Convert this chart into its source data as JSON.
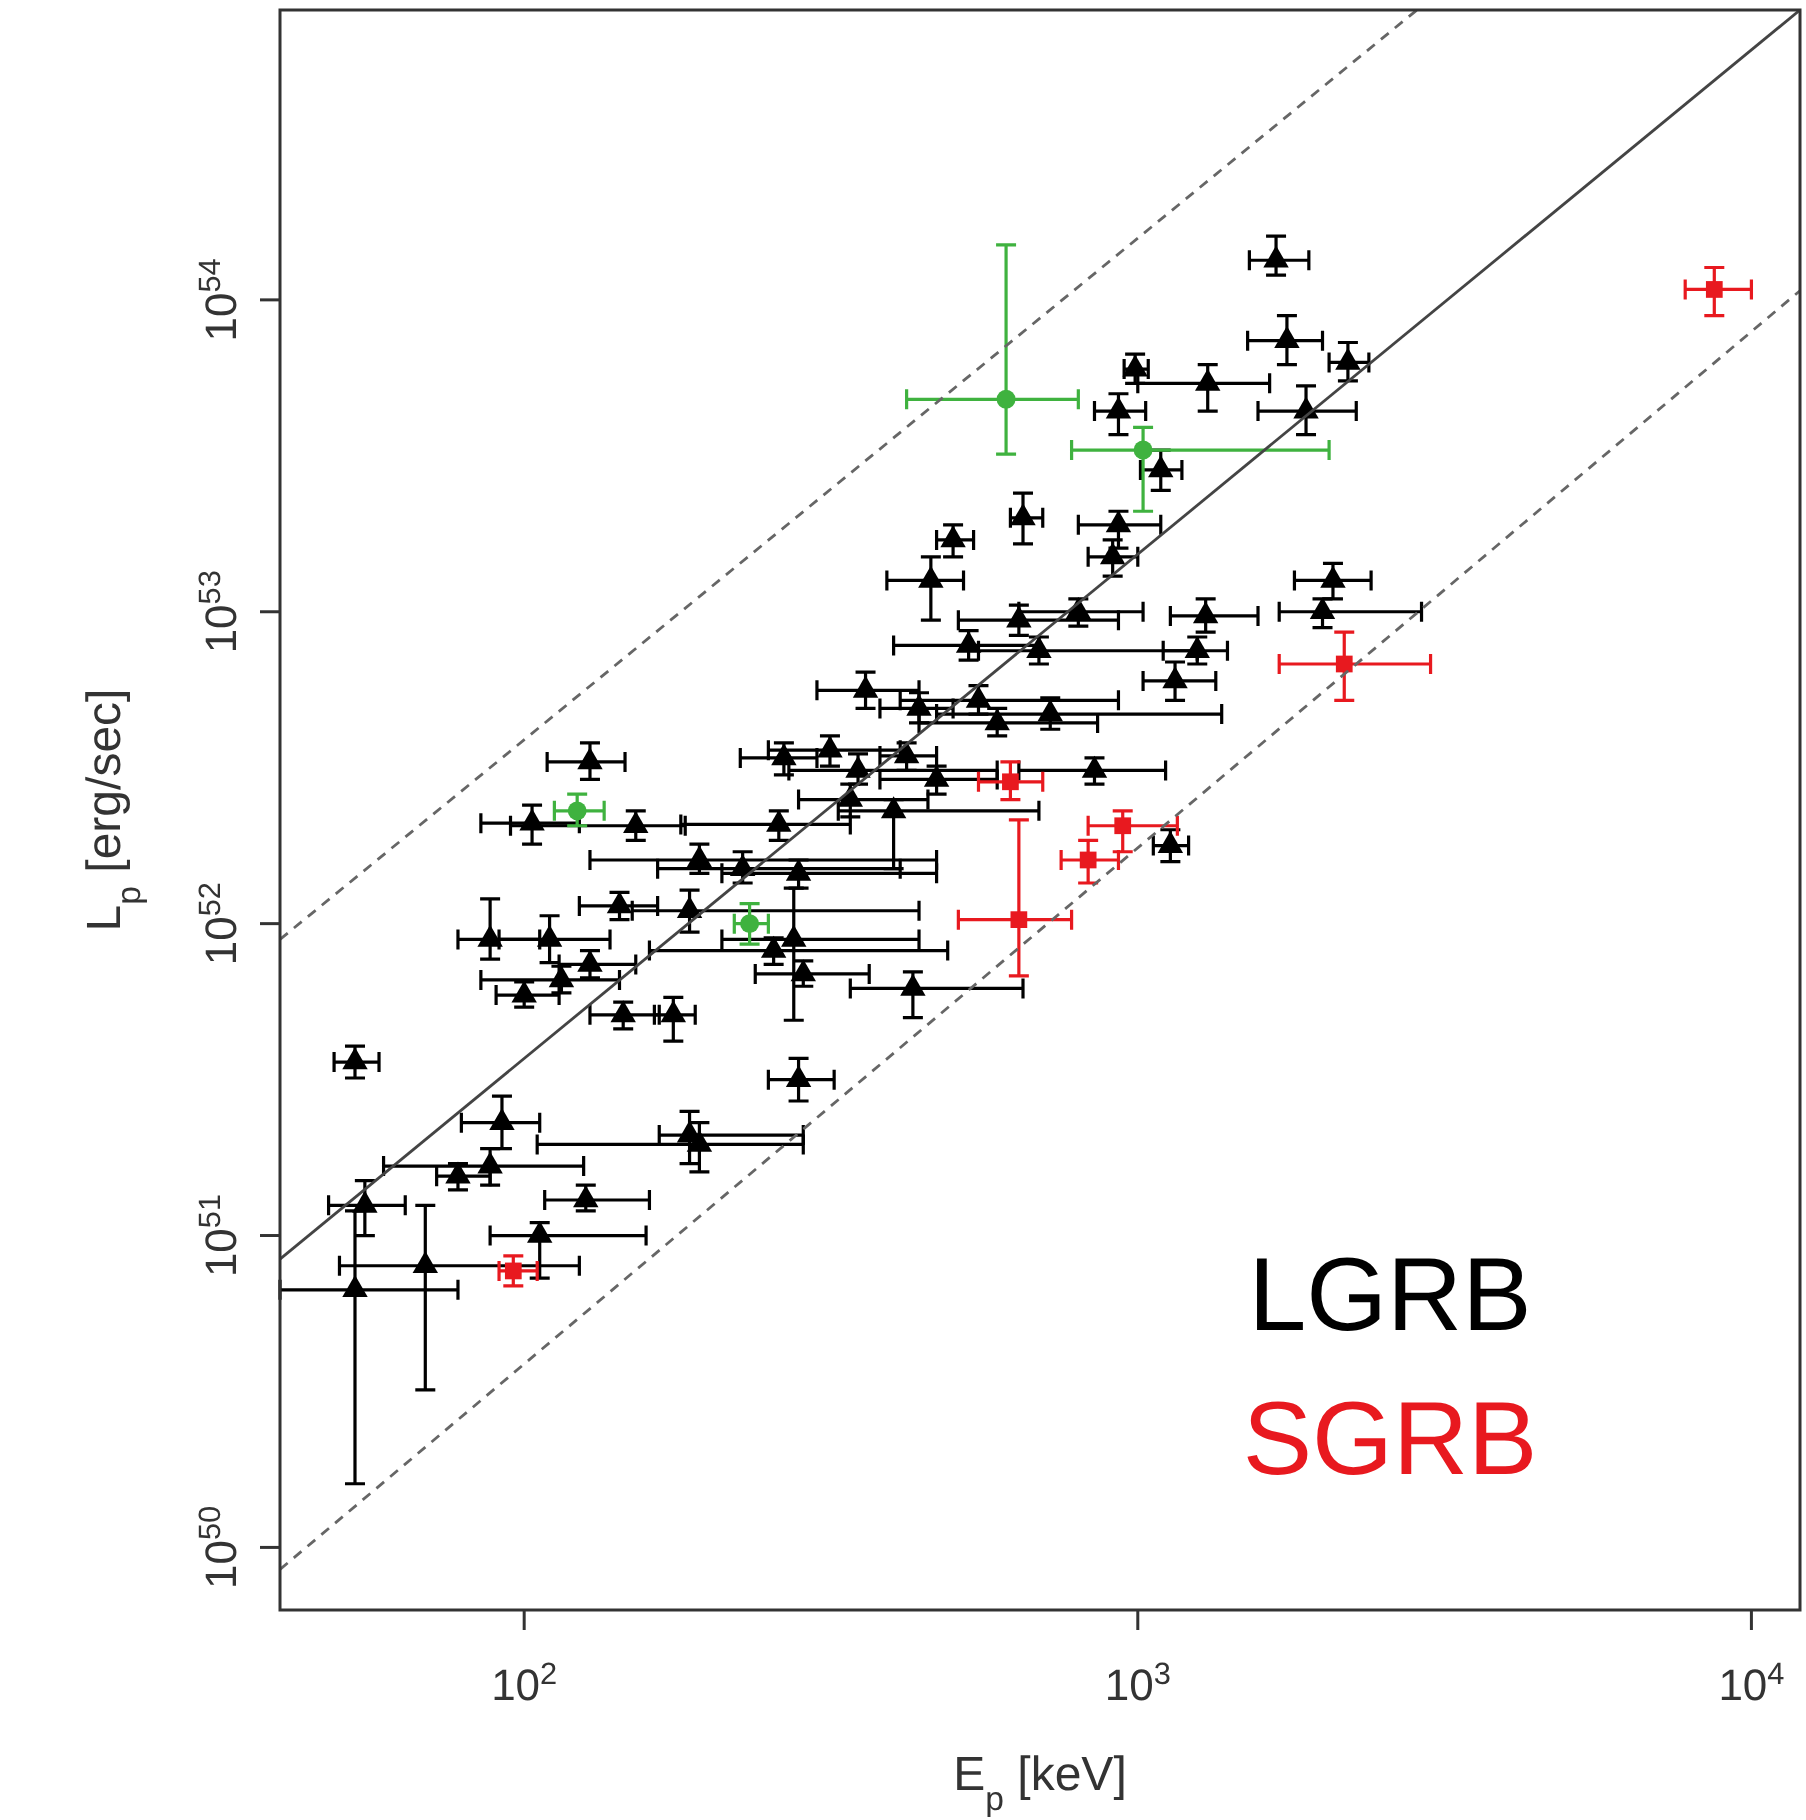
{
  "chart_data": {
    "type": "scatter",
    "xlabel": "E$_{p}$ [keV]",
    "ylabel": "L$_{p}$ [erg/sec]",
    "log": "xy",
    "xlim": [
      40,
      12000
    ],
    "ylim": [
      6.3e+49,
      8.5e+54
    ],
    "xticks": [
      {
        "value": 100,
        "label": "10$^{2}$"
      },
      {
        "value": 1000,
        "label": "10$^{3}$"
      },
      {
        "value": 10000,
        "label": "10$^{4}$"
      }
    ],
    "yticks": [
      {
        "value": 1e+50,
        "label": "10$^{50}$"
      },
      {
        "value": 1e+51,
        "label": "10$^{51}$"
      },
      {
        "value": 1e+52,
        "label": "10$^{52}$"
      },
      {
        "value": 1e+53,
        "label": "10$^{53}$"
      },
      {
        "value": 1e+54,
        "label": "10$^{54}$"
      }
    ],
    "legend": "bottom right",
    "series": [
      {
        "name": "LGRB",
        "color": "#000000",
        "marker": "triangle",
        "x": [
          1680,
          1750,
          2200,
          990,
          1300,
          930,
          1880,
          1090,
          650,
          500,
          930,
          910,
          460,
          2080,
          1290,
          2000,
          640,
          800,
          690,
          530,
          1250,
          1150,
          360,
          550,
          440,
          590,
          720,
          265,
          315,
          350,
          420,
          470,
          340,
          400,
          850,
          128,
          103,
          152,
          260,
          193,
          227,
          280,
          186,
          143,
          275,
          255,
          285,
          430,
          88,
          110,
          128,
          115,
          100,
          145,
          175,
          53,
          53,
          69,
          55,
          78,
          88,
          92,
          126,
          106,
          186,
          193,
          280,
          1130
        ],
        "values": [
          1.34e+54,
          7.4e+53,
          6.3e+53,
          6e+53,
          5.4e+53,
          4.4e+53,
          4.4e+53,
          2.85e+53,
          2e+53,
          1.7e+53,
          1.9e+53,
          1.5e+53,
          1.26e+53,
          1.26e+53,
          9.7e+52,
          1e+53,
          9.4e+52,
          1e+53,
          7.5e+52,
          7.8e+52,
          7.5e+52,
          6e+52,
          5.6e+52,
          5.2e+52,
          4.9e+52,
          4.4e+52,
          4.7e+52,
          3.4e+52,
          3.6e+52,
          3.1e+52,
          3.45e+52,
          2.9e+52,
          2.5e+52,
          2.3e+52,
          3.1e+52,
          3.3e+52,
          2.1e+52,
          2.06e+52,
          2.08e+52,
          1.6e+52,
          1.5e+52,
          1.45e+52,
          1.1e+52,
          1.14e+52,
          8.9e+51,
          8.2e+51,
          6.9e+51,
          6.2e+51,
          8.9e+51,
          8.9e+51,
          7.4e+51,
          6.6e+51,
          5.9e+51,
          5.1e+51,
          5.1e+51,
          3.6e+51,
          6.7e+50,
          8e+50,
          1.25e+51,
          1.55e+51,
          1.67e+51,
          2.3e+51,
          1.3e+51,
          1e+51,
          2.1e+51,
          1.96e+51,
          3.16e+51,
          1.78e+52
        ],
        "xerrors": [
          [
            1520,
            1900
          ],
          [
            1510,
            2000
          ],
          [
            2050,
            2380
          ],
          [
            950,
            1040
          ],
          [
            1000,
            1640
          ],
          [
            850,
            1030
          ],
          [
            1570,
            2270
          ],
          [
            1010,
            1180
          ],
          [
            620,
            700
          ],
          [
            470,
            540
          ],
          [
            800,
            1090
          ],
          [
            830,
            1000
          ],
          [
            390,
            520
          ],
          [
            1800,
            2400
          ],
          [
            1130,
            1570
          ],
          [
            1700,
            2900
          ],
          [
            510,
            930
          ],
          [
            640,
            1020
          ],
          [
            550,
            1250
          ],
          [
            400,
            690
          ],
          [
            1100,
            1400
          ],
          [
            1020,
            1340
          ],
          [
            300,
            440
          ],
          [
            410,
            930
          ],
          [
            380,
            500
          ],
          [
            440,
            860
          ],
          [
            470,
            1370
          ],
          [
            225,
            300
          ],
          [
            250,
            410
          ],
          [
            270,
            590
          ],
          [
            380,
            470
          ],
          [
            380,
            590
          ],
          [
            280,
            455
          ],
          [
            325,
            690
          ],
          [
            640,
            1110
          ],
          [
            109,
            146
          ],
          [
            85,
            123
          ],
          [
            95,
            183
          ],
          [
            180,
            340
          ],
          [
            128,
            470
          ],
          [
            165,
            410
          ],
          [
            210,
            470
          ],
          [
            150,
            440
          ],
          [
            123,
            165
          ],
          [
            210,
            440
          ],
          [
            160,
            490
          ],
          [
            238,
            365
          ],
          [
            340,
            650
          ],
          [
            78,
            106
          ],
          [
            91,
            138
          ],
          [
            114,
            152
          ],
          [
            85,
            143
          ],
          [
            90,
            114
          ],
          [
            128,
            166
          ],
          [
            163,
            190
          ],
          [
            49,
            58
          ],
          [
            40,
            78
          ],
          [
            50,
            123
          ],
          [
            48,
            64
          ],
          [
            72,
            88
          ],
          [
            59,
            125
          ],
          [
            79,
            106
          ],
          [
            108,
            160
          ],
          [
            88,
            158
          ],
          [
            166,
            285
          ],
          [
            105,
            285
          ],
          [
            250,
            320
          ],
          [
            1060,
            1210
          ]
        ],
        "errors": [
          [
            1.2e+54,
            1.6e+54
          ],
          [
            6.2e+53,
            8.9e+53
          ],
          [
            5.5e+53,
            7.3e+53
          ],
          [
            5.4e+53,
            6.7e+53
          ],
          [
            4.4e+53,
            6.2e+53
          ],
          [
            3.7e+53,
            5e+53
          ],
          [
            3.7e+53,
            5.3e+53
          ],
          [
            2.45e+53,
            3.3e+53
          ],
          [
            1.65e+53,
            2.4e+53
          ],
          [
            1.5e+53,
            1.9e+53
          ],
          [
            1.6e+53,
            2.1e+53
          ],
          [
            1.3e+53,
            1.7e+53
          ],
          [
            9.4e+52,
            1.5e+53
          ],
          [
            1.1e+53,
            1.43e+53
          ],
          [
            8.6e+52,
            1.1e+53
          ],
          [
            8.9e+52,
            1.1e+53
          ],
          [
            8.4e+52,
            1.05e+53
          ],
          [
            9e+52,
            1.1e+53
          ],
          [
            6.8e+52,
            8.3e+52
          ],
          [
            7e+52,
            8.7e+52
          ],
          [
            6.8e+52,
            8.3e+52
          ],
          [
            5.2e+52,
            6.9e+52
          ],
          [
            4.9e+52,
            6.4e+52
          ],
          [
            4.7e+52,
            5.8e+52
          ],
          [
            4.4e+52,
            5.5e+52
          ],
          [
            4e+52,
            4.9e+52
          ],
          [
            4.2e+52,
            5.3e+52
          ],
          [
            3e+52,
            3.8e+52
          ],
          [
            3.2e+52,
            4e+52
          ],
          [
            2.8e+52,
            3.5e+52
          ],
          [
            3.1e+52,
            3.8e+52
          ],
          [
            2.6e+52,
            3.2e+52
          ],
          [
            2.2e+52,
            2.8e+52
          ],
          [
            1.5e+52,
            2.5e+52
          ],
          [
            2.8e+52,
            3.4e+52
          ],
          [
            2.9e+52,
            3.8e+52
          ],
          [
            1.8e+52,
            2.4e+52
          ],
          [
            1.85e+52,
            2.3e+52
          ],
          [
            1.85e+52,
            2.3e+52
          ],
          [
            1.45e+52,
            1.8e+52
          ],
          [
            1.35e+52,
            1.7e+52
          ],
          [
            1.3e+52,
            1.6e+52
          ],
          [
            9.4e+51,
            1.28e+52
          ],
          [
            1.03e+52,
            1.26e+52
          ],
          [
            4.9e+51,
            1.3e+52
          ],
          [
            7.4e+51,
            9e+51
          ],
          [
            6.3e+51,
            7.6e+51
          ],
          [
            5e+51,
            7e+51
          ],
          [
            7.7e+51,
            1.2e+52
          ],
          [
            7.5e+51,
            1.06e+52
          ],
          [
            6.7e+51,
            8.2e+51
          ],
          [
            6e+51,
            7.3e+51
          ],
          [
            5.4e+51,
            6.5e+51
          ],
          [
            4.6e+51,
            5.6e+51
          ],
          [
            4.2e+51,
            5.8e+51
          ],
          [
            3.2e+51,
            4.05e+51
          ],
          [
            1.6e+50,
            1.2e+51
          ],
          [
            3.2e+50,
            1.25e+51
          ],
          [
            1e+51,
            1.5e+51
          ],
          [
            1.4e+51,
            1.7e+51
          ],
          [
            1.45e+51,
            1.9e+51
          ],
          [
            1.9e+51,
            2.8e+51
          ],
          [
            1.2e+51,
            1.45e+51
          ],
          [
            7.3e+50,
            1.1e+51
          ],
          [
            1.7e+51,
            2.5e+51
          ],
          [
            1.6e+51,
            2.3e+51
          ],
          [
            2.7e+51,
            3.7e+51
          ],
          [
            1.58e+52,
            2e+52
          ]
        ]
      },
      {
        "name": "SGRB",
        "color": "#e8191f",
        "marker": "square",
        "x": [
          8700,
          2170,
          620,
          945,
          830,
          640,
          96
        ],
        "values": [
          1.08e+54,
          6.8e+52,
          2.85e+52,
          2.06e+52,
          1.6e+52,
          1.03e+52,
          7.7e+50
        ],
        "xerrors": [
          [
            7800,
            10000
          ],
          [
            1700,
            3000
          ],
          [
            550,
            700
          ],
          [
            830,
            1160
          ],
          [
            750,
            930
          ],
          [
            510,
            780
          ],
          [
            91,
            105
          ]
        ],
        "errors": [
          [
            8.9e+53,
            1.27e+54
          ],
          [
            5.2e+52,
            8.6e+52
          ],
          [
            2.5e+52,
            3.3e+52
          ],
          [
            1.7e+52,
            2.3e+52
          ],
          [
            1.35e+52,
            1.85e+52
          ],
          [
            6.8e+51,
            2.15e+52
          ],
          [
            6.9e+50,
            8.6e+50
          ]
        ]
      },
      {
        "color": "#3fb23f",
        "marker": "circle",
        "x": [
          610,
          1020,
          122,
          233
        ],
        "values": [
          4.8e+53,
          3.3e+53,
          2.3e+52,
          1e+52
        ],
        "xerrors": [
          [
            420,
            800
          ],
          [
            780,
            2050
          ],
          [
            112,
            135
          ],
          [
            220,
            250
          ]
        ],
        "errors": [
          [
            3.2e+53,
            1.5e+54
          ],
          [
            2.1e+53,
            3.9e+53
          ],
          [
            2.06e+52,
            2.6e+52
          ],
          [
            8.6e+51,
            1.16e+52
          ]
        ]
      },
      {
        "type": "line",
        "color": "#444444",
        "line_style": "solid",
        "x": [
          40,
          12000
        ],
        "values": [
          8.4e+50,
          8.5e+54
        ]
      },
      {
        "type": "line",
        "color": "#666666",
        "line_style": "dashed",
        "x": [
          40,
          2850
        ],
        "values": [
          8.9e+51,
          8.5e+54
        ]
      },
      {
        "type": "line",
        "color": "#666666",
        "line_style": "dashed",
        "x": [
          40,
          12000
        ],
        "values": [
          8.5e+49,
          1.07e+54
        ]
      }
    ]
  }
}
